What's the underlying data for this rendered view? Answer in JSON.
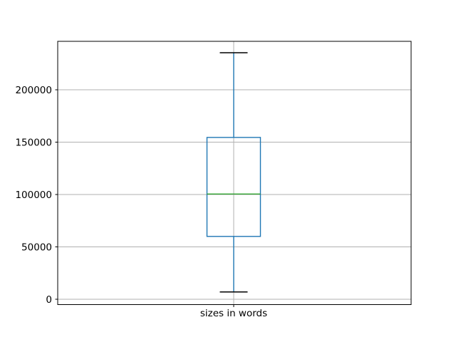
{
  "chart_data": {
    "type": "boxplot",
    "title": "",
    "xlabel": "",
    "ylabel": "",
    "x_tick_labels": [
      "sizes in words"
    ],
    "y_ticks": [
      0,
      50000,
      100000,
      150000,
      200000
    ],
    "ylim": [
      -5100,
      246260
    ],
    "grid": true,
    "legend": false,
    "series": [
      {
        "name": "sizes in words",
        "whisker_low": 7000,
        "q1": 60000,
        "median": 100500,
        "q3": 154500,
        "whisker_high": 235400
      }
    ],
    "colors": {
      "box": "#1f77b4",
      "whisker": "#1f77b4",
      "cap": "#000000",
      "median": "#2ca02c",
      "grid": "#b0b0b0",
      "spine": "#000000",
      "text": "#000000",
      "background": "#ffffff"
    }
  }
}
